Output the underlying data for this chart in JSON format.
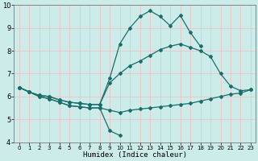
{
  "xlabel": "Humidex (Indice chaleur)",
  "bg_color": "#ccecea",
  "grid_color": "#e8c8c8",
  "line_color": "#1a6e6a",
  "xlim": [
    -0.5,
    23.5
  ],
  "ylim": [
    4,
    10
  ],
  "xticks": [
    0,
    1,
    2,
    3,
    4,
    5,
    6,
    7,
    8,
    9,
    10,
    11,
    12,
    13,
    14,
    15,
    16,
    17,
    18,
    19,
    20,
    21,
    22,
    23
  ],
  "yticks": [
    4,
    5,
    6,
    7,
    8,
    9,
    10
  ],
  "line1_x": [
    0,
    1,
    2,
    3,
    4,
    5,
    6,
    7,
    8,
    9,
    10,
    11,
    12,
    13,
    14,
    15,
    16,
    17,
    18,
    19,
    20,
    21,
    22,
    23
  ],
  "line1_y": [
    6.4,
    6.2,
    6.0,
    5.9,
    5.75,
    5.6,
    5.55,
    5.5,
    5.5,
    5.4,
    5.3,
    5.4,
    5.45,
    5.5,
    5.55,
    5.6,
    5.65,
    5.7,
    5.8,
    5.9,
    6.0,
    6.1,
    6.15,
    6.3
  ],
  "line2_x": [
    0,
    1,
    2,
    3,
    4,
    5,
    6,
    7,
    8,
    9,
    10
  ],
  "line2_y": [
    6.4,
    6.2,
    6.0,
    5.9,
    5.75,
    5.6,
    5.55,
    5.5,
    5.5,
    4.5,
    4.3
  ],
  "line3_x": [
    0,
    1,
    2,
    3,
    4,
    5,
    6,
    7,
    8,
    9,
    10,
    11,
    12,
    13,
    14,
    15,
    16,
    17,
    18,
    19,
    20,
    21,
    22,
    23
  ],
  "line3_y": [
    6.4,
    6.2,
    6.05,
    6.0,
    5.85,
    5.75,
    5.7,
    5.65,
    5.65,
    6.6,
    7.0,
    7.35,
    7.55,
    7.8,
    8.05,
    8.2,
    8.3,
    8.15,
    8.0,
    7.75,
    7.0,
    6.45,
    6.25,
    6.3
  ],
  "line4_x": [
    0,
    1,
    2,
    3,
    4,
    5,
    6,
    7,
    8,
    9,
    10,
    11,
    12,
    13,
    14,
    15,
    16,
    17,
    18
  ],
  "line4_y": [
    6.4,
    6.2,
    6.05,
    6.0,
    5.85,
    5.75,
    5.7,
    5.65,
    5.65,
    6.8,
    8.3,
    9.0,
    9.5,
    9.75,
    9.5,
    9.1,
    9.55,
    8.8,
    8.2
  ]
}
